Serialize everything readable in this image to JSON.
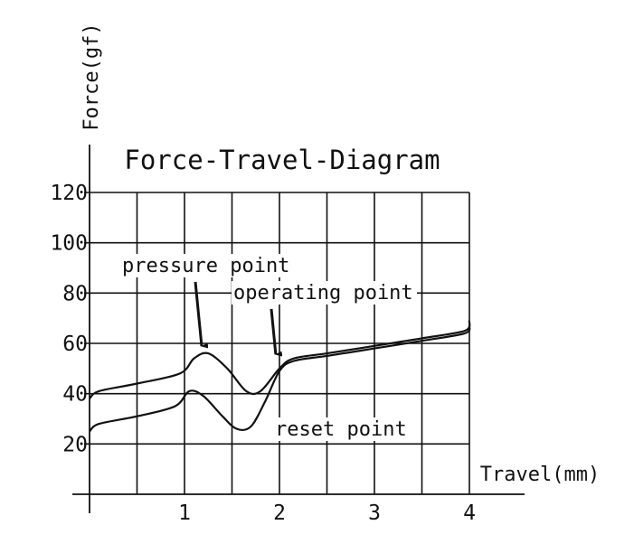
{
  "chart_data": {
    "type": "line",
    "title": "Force-Travel-Diagram",
    "xlabel": "Travel(mm)",
    "ylabel": "Force(gf)",
    "xlim": [
      0,
      4
    ],
    "ylim": [
      0,
      120
    ],
    "x_ticks": [
      "1",
      "2",
      "3",
      "4"
    ],
    "y_ticks": [
      "20",
      "40",
      "60",
      "80",
      "100",
      "120"
    ],
    "grid": true,
    "series": [
      {
        "x": [
          0,
          0.1,
          0.5,
          0.95,
          1.1,
          1.25,
          1.45,
          1.65,
          1.8,
          2.0,
          2.15,
          2.5,
          3.0,
          3.5,
          3.95,
          4.0
        ],
        "y": [
          38,
          41,
          44,
          48,
          54,
          56,
          50,
          41,
          41,
          50,
          54,
          56,
          59,
          62,
          65,
          69
        ]
      },
      {
        "x": [
          0,
          0.1,
          0.5,
          0.9,
          1.05,
          1.2,
          1.4,
          1.55,
          1.7,
          1.85,
          2.0,
          2.15,
          2.5,
          3.0,
          3.5,
          3.95,
          4.0
        ],
        "y": [
          25,
          28,
          31,
          35,
          41,
          39,
          31,
          26,
          27,
          37,
          49,
          53,
          55,
          58,
          61,
          64,
          67
        ]
      }
    ],
    "annotations": [
      {
        "text": "pressure point",
        "x": 1.2,
        "y": 56
      },
      {
        "text": "operating point",
        "x": 1.98,
        "y": 52
      },
      {
        "text": "reset point"
      }
    ]
  }
}
